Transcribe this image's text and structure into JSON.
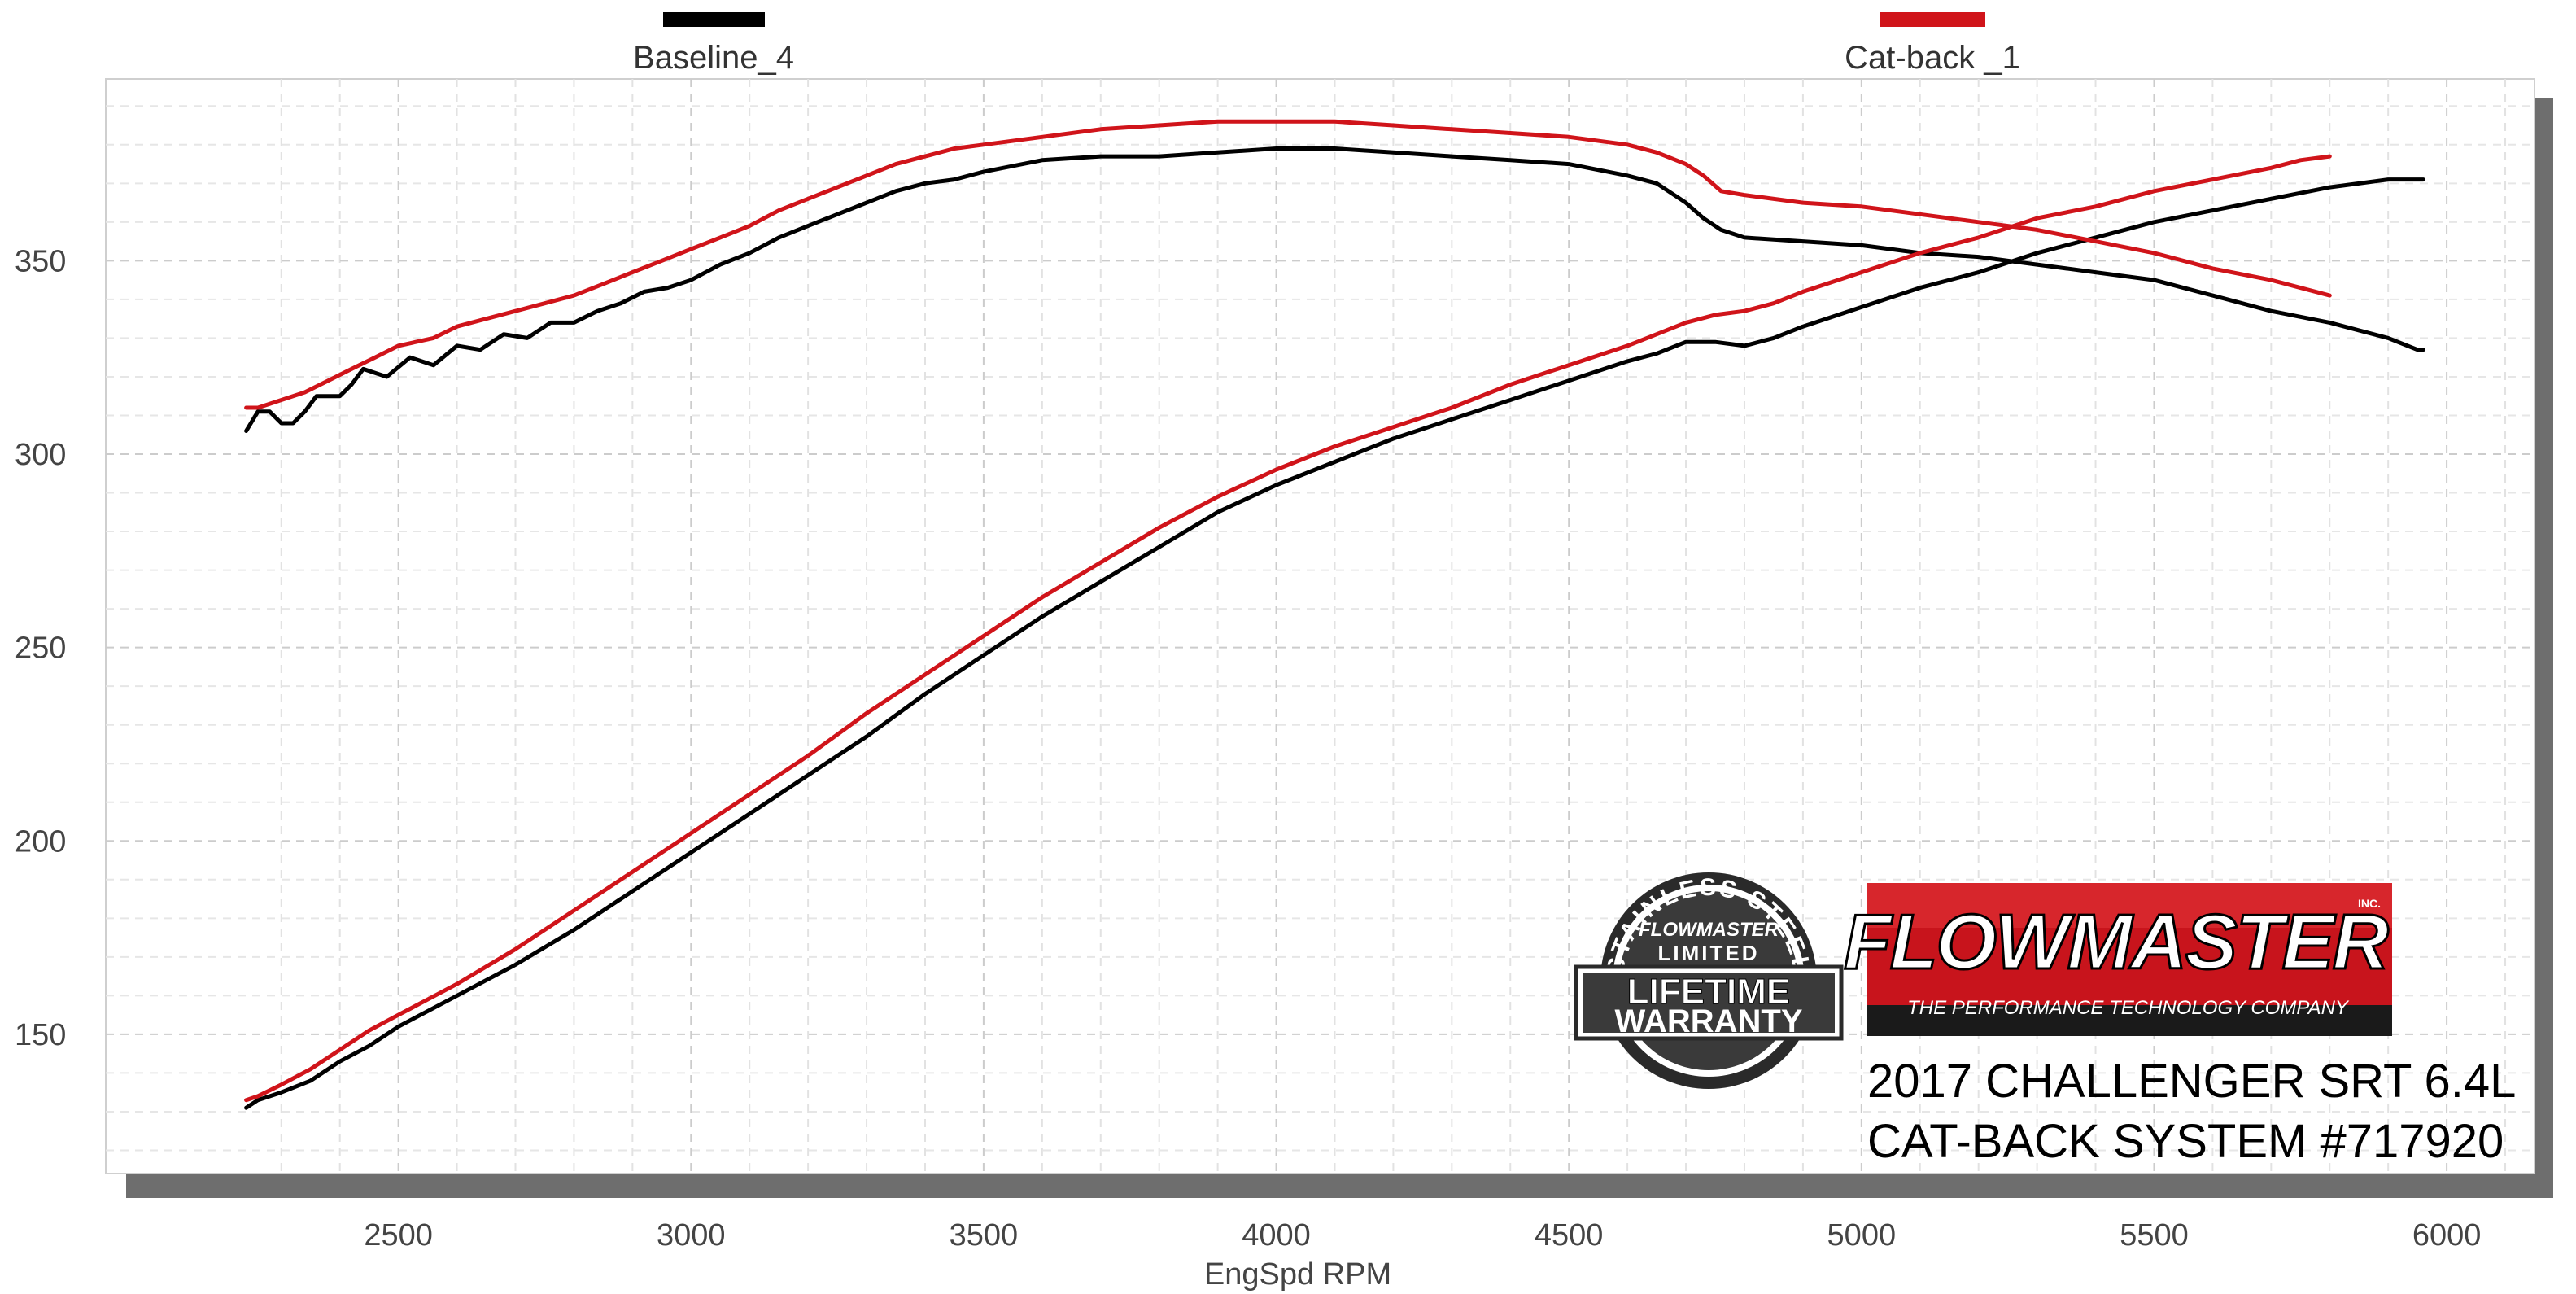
{
  "legend": [
    {
      "name": "Baseline_4",
      "color": "#000000"
    },
    {
      "name": "Cat-back _1",
      "color": "#d0141a"
    }
  ],
  "brand": {
    "logo_text": "FLOWMASTER",
    "inc": "INC.",
    "tagline": "THE PERFORMANCE TECHNOLOGY COMPANY",
    "color": "#c8141c"
  },
  "warranty_badge": {
    "top_arc": "STAINLESS STEEL",
    "brand": "FLOWMASTER",
    "limited": "LIMITED",
    "lifetime": "LIFETIME",
    "warranty": "WARRANTY"
  },
  "caption": {
    "line1": "2017 CHALLENGER SRT 6.4L",
    "line2": "CAT-BACK SYSTEM #717920"
  },
  "chart_data": {
    "type": "line",
    "title": "",
    "xlabel": "EngSpd  RPM",
    "ylabel": "",
    "xlim": [
      2000,
      6150
    ],
    "ylim": [
      114,
      397
    ],
    "x_ticks": [
      2500,
      3000,
      3500,
      4000,
      4500,
      5000,
      5500,
      6000
    ],
    "y_ticks": [
      150,
      200,
      250,
      300,
      350
    ],
    "grid": true,
    "legend_position": "top",
    "series": [
      {
        "name": "Baseline_4",
        "color": "#000000",
        "curve": "upper",
        "points": [
          [
            2240,
            306
          ],
          [
            2260,
            311
          ],
          [
            2280,
            311
          ],
          [
            2300,
            308
          ],
          [
            2320,
            308
          ],
          [
            2340,
            311
          ],
          [
            2360,
            315
          ],
          [
            2400,
            315
          ],
          [
            2420,
            318
          ],
          [
            2440,
            322
          ],
          [
            2480,
            320
          ],
          [
            2520,
            325
          ],
          [
            2560,
            323
          ],
          [
            2600,
            328
          ],
          [
            2640,
            327
          ],
          [
            2680,
            331
          ],
          [
            2720,
            330
          ],
          [
            2760,
            334
          ],
          [
            2800,
            334
          ],
          [
            2840,
            337
          ],
          [
            2880,
            339
          ],
          [
            2920,
            342
          ],
          [
            2960,
            343
          ],
          [
            3000,
            345
          ],
          [
            3050,
            349
          ],
          [
            3100,
            352
          ],
          [
            3150,
            356
          ],
          [
            3200,
            359
          ],
          [
            3250,
            362
          ],
          [
            3300,
            365
          ],
          [
            3350,
            368
          ],
          [
            3400,
            370
          ],
          [
            3450,
            371
          ],
          [
            3500,
            373
          ],
          [
            3600,
            376
          ],
          [
            3700,
            377
          ],
          [
            3800,
            377
          ],
          [
            3900,
            378
          ],
          [
            4000,
            379
          ],
          [
            4100,
            379
          ],
          [
            4200,
            378
          ],
          [
            4300,
            377
          ],
          [
            4400,
            376
          ],
          [
            4500,
            375
          ],
          [
            4600,
            372
          ],
          [
            4650,
            370
          ],
          [
            4700,
            365
          ],
          [
            4730,
            361
          ],
          [
            4760,
            358
          ],
          [
            4800,
            356
          ],
          [
            4900,
            355
          ],
          [
            5000,
            354
          ],
          [
            5100,
            352
          ],
          [
            5200,
            351
          ],
          [
            5300,
            349
          ],
          [
            5400,
            347
          ],
          [
            5500,
            345
          ],
          [
            5600,
            341
          ],
          [
            5700,
            337
          ],
          [
            5800,
            334
          ],
          [
            5850,
            332
          ],
          [
            5900,
            330
          ],
          [
            5950,
            327
          ],
          [
            5960,
            327
          ]
        ]
      },
      {
        "name": "Baseline_4",
        "color": "#000000",
        "curve": "lower",
        "points": [
          [
            2240,
            131
          ],
          [
            2260,
            133
          ],
          [
            2300,
            135
          ],
          [
            2350,
            138
          ],
          [
            2400,
            143
          ],
          [
            2450,
            147
          ],
          [
            2500,
            152
          ],
          [
            2550,
            156
          ],
          [
            2600,
            160
          ],
          [
            2700,
            168
          ],
          [
            2800,
            177
          ],
          [
            2900,
            187
          ],
          [
            3000,
            197
          ],
          [
            3100,
            207
          ],
          [
            3200,
            217
          ],
          [
            3300,
            227
          ],
          [
            3400,
            238
          ],
          [
            3500,
            248
          ],
          [
            3600,
            258
          ],
          [
            3700,
            267
          ],
          [
            3800,
            276
          ],
          [
            3900,
            285
          ],
          [
            4000,
            292
          ],
          [
            4100,
            298
          ],
          [
            4200,
            304
          ],
          [
            4300,
            309
          ],
          [
            4400,
            314
          ],
          [
            4500,
            319
          ],
          [
            4600,
            324
          ],
          [
            4650,
            326
          ],
          [
            4700,
            329
          ],
          [
            4750,
            329
          ],
          [
            4800,
            328
          ],
          [
            4850,
            330
          ],
          [
            4900,
            333
          ],
          [
            5000,
            338
          ],
          [
            5100,
            343
          ],
          [
            5200,
            347
          ],
          [
            5300,
            352
          ],
          [
            5400,
            356
          ],
          [
            5500,
            360
          ],
          [
            5600,
            363
          ],
          [
            5700,
            366
          ],
          [
            5800,
            369
          ],
          [
            5900,
            371
          ],
          [
            5960,
            371
          ]
        ]
      },
      {
        "name": "Cat-back _1",
        "color": "#d0141a",
        "curve": "upper",
        "points": [
          [
            2240,
            312
          ],
          [
            2260,
            312
          ],
          [
            2280,
            313
          ],
          [
            2300,
            314
          ],
          [
            2340,
            316
          ],
          [
            2380,
            319
          ],
          [
            2420,
            322
          ],
          [
            2460,
            325
          ],
          [
            2500,
            328
          ],
          [
            2560,
            330
          ],
          [
            2600,
            333
          ],
          [
            2650,
            335
          ],
          [
            2700,
            337
          ],
          [
            2750,
            339
          ],
          [
            2800,
            341
          ],
          [
            2850,
            344
          ],
          [
            2900,
            347
          ],
          [
            2950,
            350
          ],
          [
            3000,
            353
          ],
          [
            3050,
            356
          ],
          [
            3100,
            359
          ],
          [
            3150,
            363
          ],
          [
            3200,
            366
          ],
          [
            3250,
            369
          ],
          [
            3300,
            372
          ],
          [
            3350,
            375
          ],
          [
            3400,
            377
          ],
          [
            3450,
            379
          ],
          [
            3500,
            380
          ],
          [
            3600,
            382
          ],
          [
            3700,
            384
          ],
          [
            3800,
            385
          ],
          [
            3900,
            386
          ],
          [
            4000,
            386
          ],
          [
            4100,
            386
          ],
          [
            4200,
            385
          ],
          [
            4300,
            384
          ],
          [
            4400,
            383
          ],
          [
            4500,
            382
          ],
          [
            4600,
            380
          ],
          [
            4650,
            378
          ],
          [
            4700,
            375
          ],
          [
            4730,
            372
          ],
          [
            4760,
            368
          ],
          [
            4800,
            367
          ],
          [
            4900,
            365
          ],
          [
            5000,
            364
          ],
          [
            5100,
            362
          ],
          [
            5200,
            360
          ],
          [
            5300,
            358
          ],
          [
            5400,
            355
          ],
          [
            5500,
            352
          ],
          [
            5600,
            348
          ],
          [
            5700,
            345
          ],
          [
            5750,
            343
          ],
          [
            5800,
            341
          ]
        ]
      },
      {
        "name": "Cat-back _1",
        "color": "#d0141a",
        "curve": "lower",
        "points": [
          [
            2240,
            133
          ],
          [
            2260,
            134
          ],
          [
            2300,
            137
          ],
          [
            2350,
            141
          ],
          [
            2400,
            146
          ],
          [
            2450,
            151
          ],
          [
            2500,
            155
          ],
          [
            2550,
            159
          ],
          [
            2600,
            163
          ],
          [
            2700,
            172
          ],
          [
            2800,
            182
          ],
          [
            2900,
            192
          ],
          [
            3000,
            202
          ],
          [
            3100,
            212
          ],
          [
            3200,
            222
          ],
          [
            3300,
            233
          ],
          [
            3400,
            243
          ],
          [
            3500,
            253
          ],
          [
            3600,
            263
          ],
          [
            3700,
            272
          ],
          [
            3800,
            281
          ],
          [
            3900,
            289
          ],
          [
            4000,
            296
          ],
          [
            4100,
            302
          ],
          [
            4200,
            307
          ],
          [
            4300,
            312
          ],
          [
            4400,
            318
          ],
          [
            4500,
            323
          ],
          [
            4600,
            328
          ],
          [
            4650,
            331
          ],
          [
            4700,
            334
          ],
          [
            4750,
            336
          ],
          [
            4800,
            337
          ],
          [
            4850,
            339
          ],
          [
            4900,
            342
          ],
          [
            5000,
            347
          ],
          [
            5100,
            352
          ],
          [
            5200,
            356
          ],
          [
            5300,
            361
          ],
          [
            5400,
            364
          ],
          [
            5500,
            368
          ],
          [
            5600,
            371
          ],
          [
            5700,
            374
          ],
          [
            5750,
            376
          ],
          [
            5800,
            377
          ]
        ]
      }
    ]
  }
}
